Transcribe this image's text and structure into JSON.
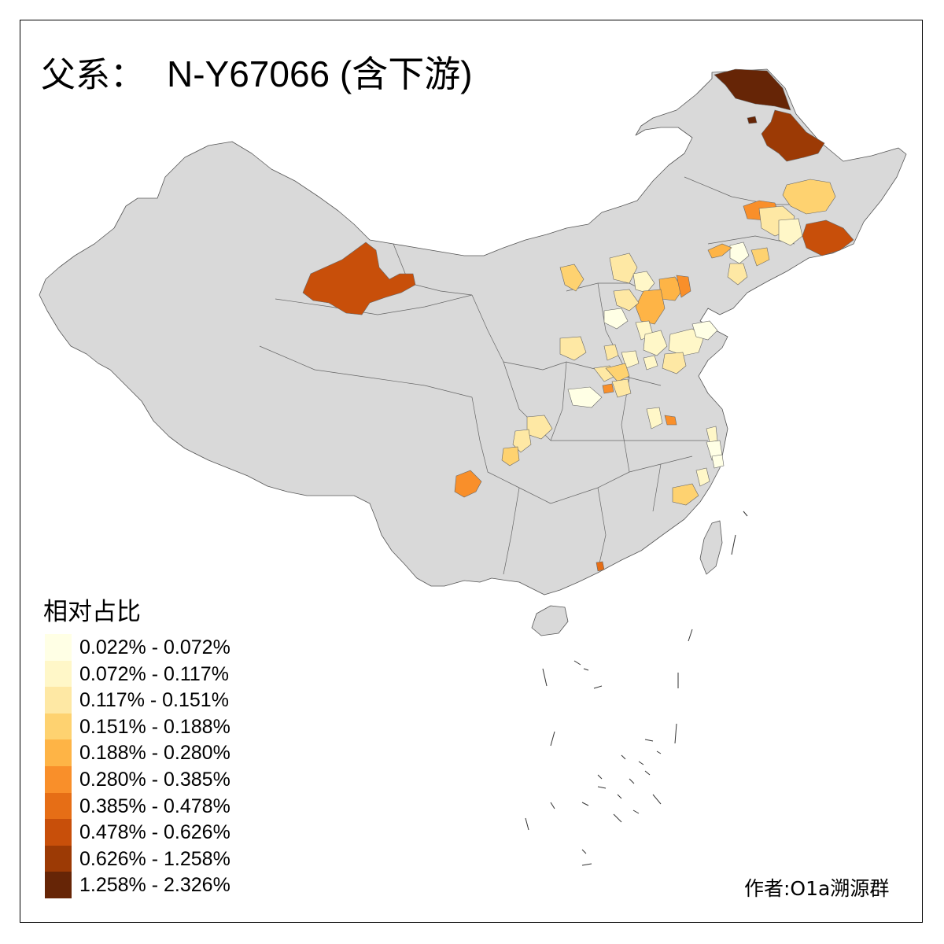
{
  "title": {
    "prefix": "父系：",
    "haplogroup": "N-Y67066 (含下游)"
  },
  "legend": {
    "title": "相对占比",
    "items": [
      {
        "label": "0.022% - 0.072%",
        "color": "#FFFFE5"
      },
      {
        "label": "0.072% - 0.117%",
        "color": "#FFF7C8"
      },
      {
        "label": "0.117% - 0.151%",
        "color": "#FEE8A4"
      },
      {
        "label": "0.151% - 0.188%",
        "color": "#FED270"
      },
      {
        "label": "0.188% - 0.280%",
        "color": "#FEB446"
      },
      {
        "label": "0.280% - 0.385%",
        "color": "#F98F2A"
      },
      {
        "label": "0.385% - 0.478%",
        "color": "#E66E16"
      },
      {
        "label": "0.478% - 0.626%",
        "color": "#C84F0A"
      },
      {
        "label": "0.626% - 1.258%",
        "color": "#9C3A05"
      },
      {
        "label": "1.258% - 2.326%",
        "color": "#662506"
      }
    ]
  },
  "author": "作者:O1a溯源群",
  "map": {
    "base_color": "#D9D9D9",
    "border_color": "#555555"
  }
}
